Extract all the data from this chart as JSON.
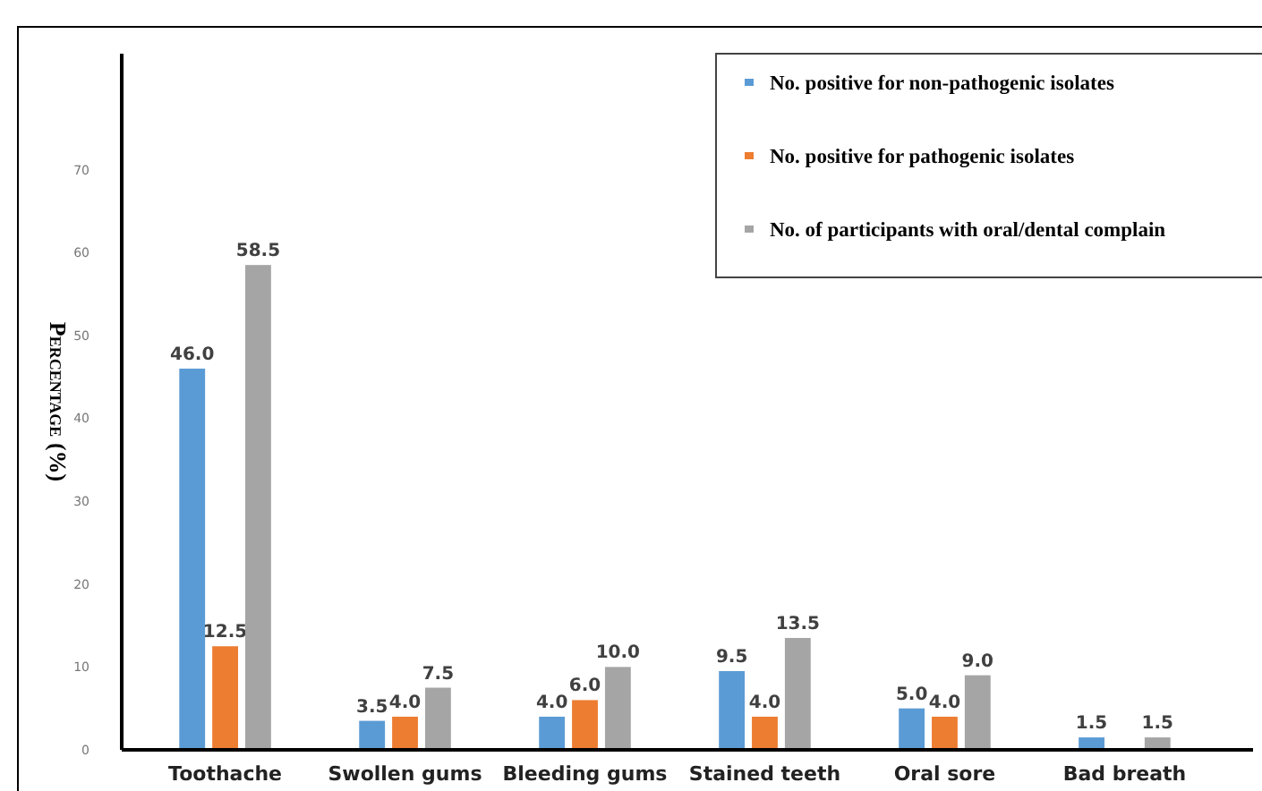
{
  "chart_data": {
    "type": "bar",
    "ylabel": "Percentage (%)",
    "categories": [
      "Toothache",
      "Swollen gums",
      "Bleeding gums",
      "Stained teeth",
      "Oral sore",
      "Bad breath"
    ],
    "series": [
      {
        "name": "No. positive for non-pathogenic isolates",
        "color": "#5b9bd5",
        "values": [
          46.0,
          3.5,
          4.0,
          9.5,
          5.0,
          1.5
        ],
        "value_labels": [
          "46.0",
          "3.5",
          "4.0",
          "9.5",
          "5.0",
          "1.5"
        ]
      },
      {
        "name": "No. positive for pathogenic isolates",
        "color": "#ed7d31",
        "values": [
          12.5,
          4.0,
          6.0,
          4.0,
          4.0,
          null
        ],
        "value_labels": [
          "12.5",
          "4.0",
          "6.0",
          "4.0",
          "4.0",
          null
        ]
      },
      {
        "name": "No. of participants with oral/dental complain",
        "color": "#a5a5a5",
        "values": [
          58.5,
          7.5,
          10.0,
          13.5,
          9.0,
          1.5
        ],
        "value_labels": [
          "58.5",
          "7.5",
          "10.0",
          "13.5",
          "9.0",
          "1.5"
        ]
      }
    ],
    "ylim": [
      0,
      84
    ],
    "yticks": [
      0,
      10,
      20,
      30,
      40,
      50,
      60,
      70
    ],
    "grid": false,
    "legend": "top right"
  }
}
